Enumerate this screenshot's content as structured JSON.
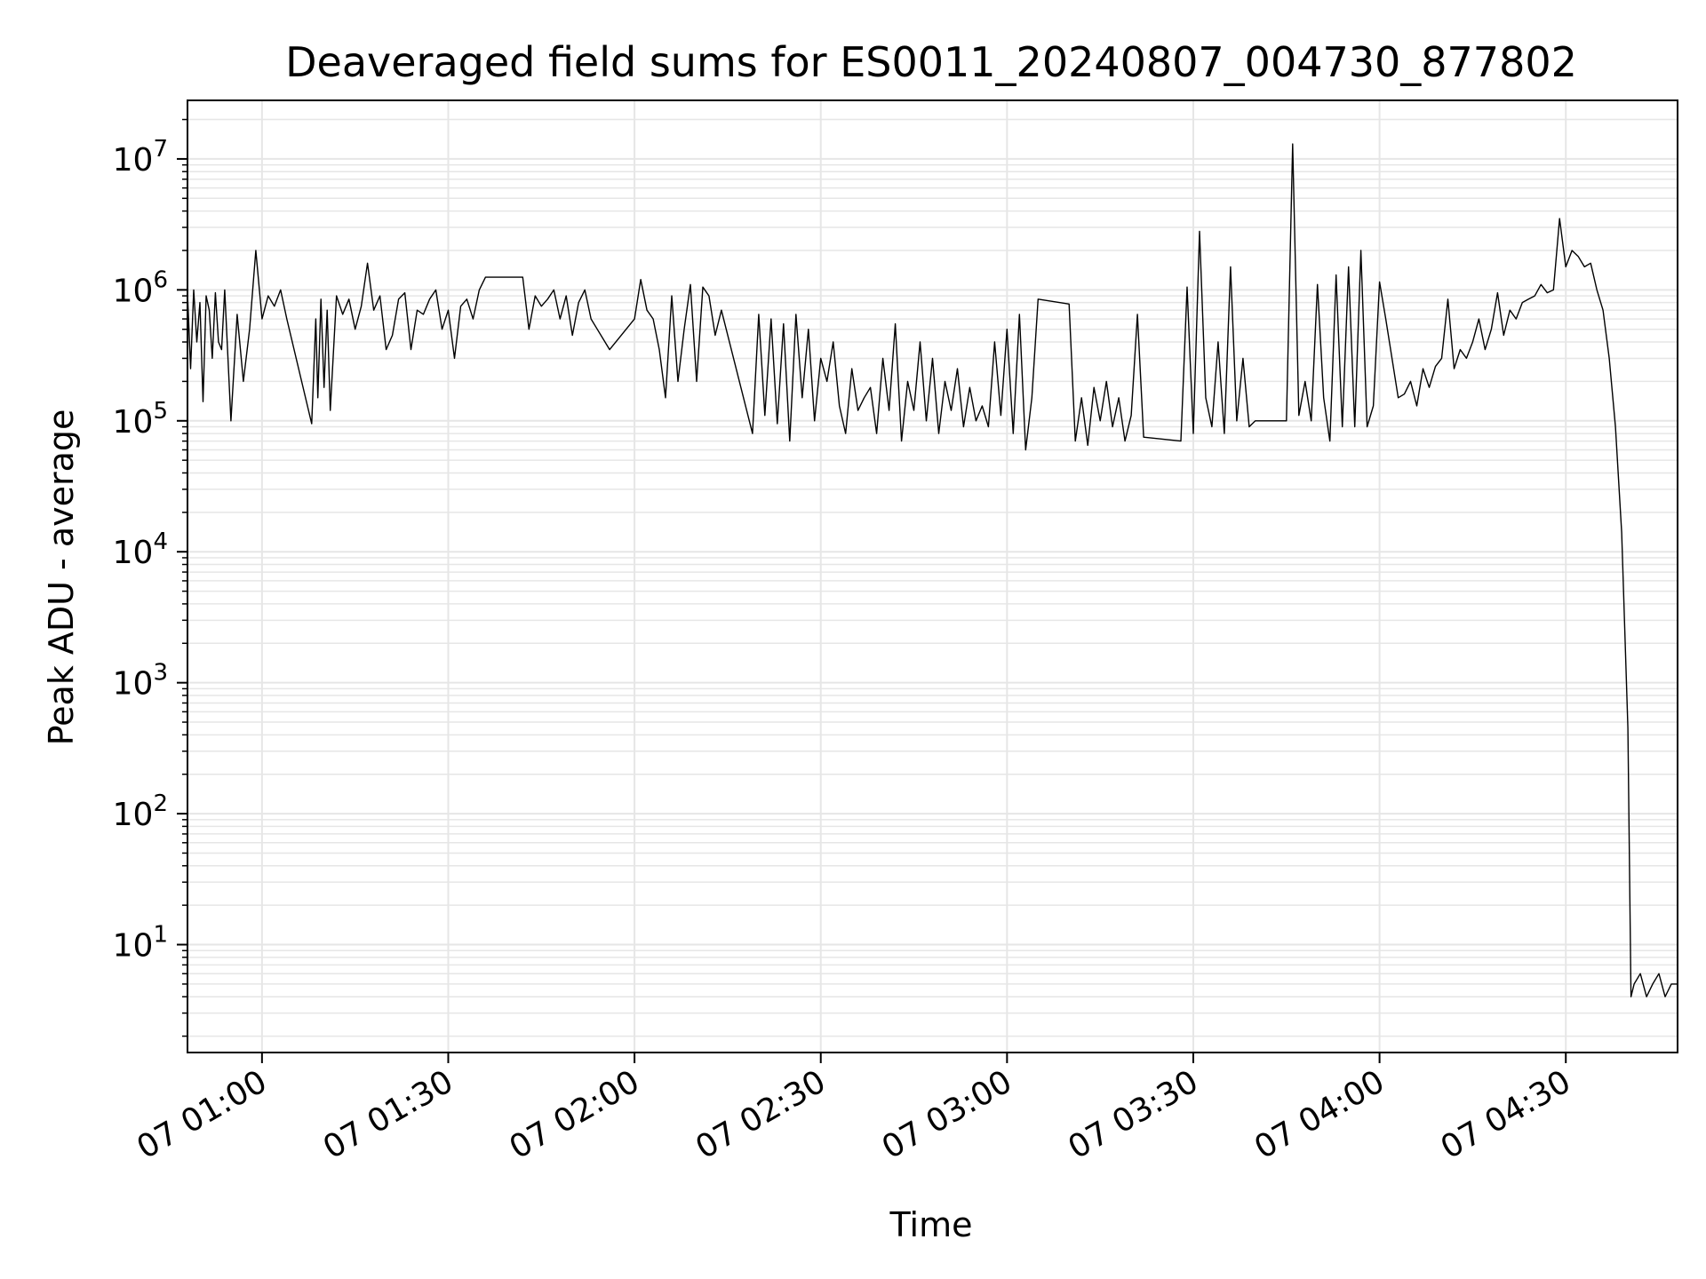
{
  "chart_data": {
    "type": "line",
    "title": "Deaveraged field sums for ES0011_20240807_004730_877802",
    "xlabel": "Time",
    "ylabel": "Peak ADU - average",
    "yscale": "log",
    "ylim": [
      1.5,
      28000000
    ],
    "xlim": [
      "2024-08-07 00:48",
      "2024-08-07 04:48"
    ],
    "x_tick_labels": [
      "07 01:00",
      "07 01:30",
      "07 02:00",
      "07 02:30",
      "07 03:00",
      "07 03:30",
      "07 04:00",
      "07 04:30"
    ],
    "x_ticks": [
      "2024-08-07 01:00",
      "2024-08-07 01:30",
      "2024-08-07 02:00",
      "2024-08-07 02:30",
      "2024-08-07 03:00",
      "2024-08-07 03:30",
      "2024-08-07 04:00",
      "2024-08-07 04:30"
    ],
    "y_ticks": [
      10,
      100,
      1000,
      10000,
      100000,
      1000000,
      10000000
    ],
    "y_tick_labels": [
      {
        "base": "10",
        "exp": "1"
      },
      {
        "base": "10",
        "exp": "2"
      },
      {
        "base": "10",
        "exp": "3"
      },
      {
        "base": "10",
        "exp": "4"
      },
      {
        "base": "10",
        "exp": "5"
      },
      {
        "base": "10",
        "exp": "6"
      },
      {
        "base": "10",
        "exp": "7"
      }
    ],
    "grid": true,
    "line_color": "#000000",
    "grid_color": "#e6e6e6",
    "series": [
      {
        "x": [
          "2024-08-07 00:48",
          "2024-08-07 00:48:30",
          "2024-08-07 00:49",
          "2024-08-07 00:49:30",
          "2024-08-07 00:50",
          "2024-08-07 00:50:30",
          "2024-08-07 00:51",
          "2024-08-07 00:51:30",
          "2024-08-07 00:52",
          "2024-08-07 00:52:30",
          "2024-08-07 00:53",
          "2024-08-07 00:53:30",
          "2024-08-07 00:54",
          "2024-08-07 00:55",
          "2024-08-07 00:56",
          "2024-08-07 00:57",
          "2024-08-07 00:58",
          "2024-08-07 00:59",
          "2024-08-07 01:00",
          "2024-08-07 01:01",
          "2024-08-07 01:02",
          "2024-08-07 01:03",
          "2024-08-07 01:04",
          "2024-08-07 01:08",
          "2024-08-07 01:08:40",
          "2024-08-07 01:09",
          "2024-08-07 01:09:30",
          "2024-08-07 01:10",
          "2024-08-07 01:10:30",
          "2024-08-07 01:11",
          "2024-08-07 01:12",
          "2024-08-07 01:13",
          "2024-08-07 01:14",
          "2024-08-07 01:15",
          "2024-08-07 01:16",
          "2024-08-07 01:17",
          "2024-08-07 01:18",
          "2024-08-07 01:19",
          "2024-08-07 01:20",
          "2024-08-07 01:21",
          "2024-08-07 01:22",
          "2024-08-07 01:23",
          "2024-08-07 01:24",
          "2024-08-07 01:25",
          "2024-08-07 01:26",
          "2024-08-07 01:27",
          "2024-08-07 01:28",
          "2024-08-07 01:29",
          "2024-08-07 01:30",
          "2024-08-07 01:31",
          "2024-08-07 01:32",
          "2024-08-07 01:33",
          "2024-08-07 01:34",
          "2024-08-07 01:35",
          "2024-08-07 01:36",
          "2024-08-07 01:37",
          "2024-08-07 01:42",
          "2024-08-07 01:43",
          "2024-08-07 01:44",
          "2024-08-07 01:45",
          "2024-08-07 01:46",
          "2024-08-07 01:47",
          "2024-08-07 01:48",
          "2024-08-07 01:49",
          "2024-08-07 01:50",
          "2024-08-07 01:51",
          "2024-08-07 01:52",
          "2024-08-07 01:53",
          "2024-08-07 01:54",
          "2024-08-07 01:56",
          "2024-08-07 02:00",
          "2024-08-07 02:01",
          "2024-08-07 02:02",
          "2024-08-07 02:03",
          "2024-08-07 02:04",
          "2024-08-07 02:05",
          "2024-08-07 02:06",
          "2024-08-07 02:07",
          "2024-08-07 02:08",
          "2024-08-07 02:09",
          "2024-08-07 02:10",
          "2024-08-07 02:11",
          "2024-08-07 02:12",
          "2024-08-07 02:13",
          "2024-08-07 02:14",
          "2024-08-07 02:19",
          "2024-08-07 02:20",
          "2024-08-07 02:21",
          "2024-08-07 02:22",
          "2024-08-07 02:23",
          "2024-08-07 02:24",
          "2024-08-07 02:25",
          "2024-08-07 02:26",
          "2024-08-07 02:27",
          "2024-08-07 02:28",
          "2024-08-07 02:29",
          "2024-08-07 02:30",
          "2024-08-07 02:31",
          "2024-08-07 02:32",
          "2024-08-07 02:33",
          "2024-08-07 02:34",
          "2024-08-07 02:35",
          "2024-08-07 02:36",
          "2024-08-07 02:37",
          "2024-08-07 02:38",
          "2024-08-07 02:39",
          "2024-08-07 02:40",
          "2024-08-07 02:41",
          "2024-08-07 02:42",
          "2024-08-07 02:43",
          "2024-08-07 02:44",
          "2024-08-07 02:45",
          "2024-08-07 02:46",
          "2024-08-07 02:47",
          "2024-08-07 02:48",
          "2024-08-07 02:49",
          "2024-08-07 02:50",
          "2024-08-07 02:51",
          "2024-08-07 02:52",
          "2024-08-07 02:53",
          "2024-08-07 02:54",
          "2024-08-07 02:55",
          "2024-08-07 02:56",
          "2024-08-07 02:57",
          "2024-08-07 02:58",
          "2024-08-07 02:59",
          "2024-08-07 03:00",
          "2024-08-07 03:01",
          "2024-08-07 03:02",
          "2024-08-07 03:03",
          "2024-08-07 03:04",
          "2024-08-07 03:05",
          "2024-08-07 03:10",
          "2024-08-07 03:11",
          "2024-08-07 03:12",
          "2024-08-07 03:13",
          "2024-08-07 03:14",
          "2024-08-07 03:15",
          "2024-08-07 03:16",
          "2024-08-07 03:17",
          "2024-08-07 03:18",
          "2024-08-07 03:19",
          "2024-08-07 03:20",
          "2024-08-07 03:21",
          "2024-08-07 03:22",
          "2024-08-07 03:28",
          "2024-08-07 03:29",
          "2024-08-07 03:30",
          "2024-08-07 03:31",
          "2024-08-07 03:32",
          "2024-08-07 03:33",
          "2024-08-07 03:34",
          "2024-08-07 03:35",
          "2024-08-07 03:36",
          "2024-08-07 03:37",
          "2024-08-07 03:38",
          "2024-08-07 03:39",
          "2024-08-07 03:40",
          "2024-08-07 03:45",
          "2024-08-07 03:46",
          "2024-08-07 03:47",
          "2024-08-07 03:48",
          "2024-08-07 03:49",
          "2024-08-07 03:50",
          "2024-08-07 03:51",
          "2024-08-07 03:52",
          "2024-08-07 03:53",
          "2024-08-07 03:54",
          "2024-08-07 03:55",
          "2024-08-07 03:56",
          "2024-08-07 03:57",
          "2024-08-07 03:58",
          "2024-08-07 03:59",
          "2024-08-07 04:00",
          "2024-08-07 04:01",
          "2024-08-07 04:02",
          "2024-08-07 04:03",
          "2024-08-07 04:04",
          "2024-08-07 04:05",
          "2024-08-07 04:06",
          "2024-08-07 04:07",
          "2024-08-07 04:08",
          "2024-08-07 04:09",
          "2024-08-07 04:10",
          "2024-08-07 04:11",
          "2024-08-07 04:12",
          "2024-08-07 04:13",
          "2024-08-07 04:14",
          "2024-08-07 04:15",
          "2024-08-07 04:16",
          "2024-08-07 04:17",
          "2024-08-07 04:18",
          "2024-08-07 04:19",
          "2024-08-07 04:20",
          "2024-08-07 04:21",
          "2024-08-07 04:22",
          "2024-08-07 04:23",
          "2024-08-07 04:24",
          "2024-08-07 04:25",
          "2024-08-07 04:26",
          "2024-08-07 04:27",
          "2024-08-07 04:28",
          "2024-08-07 04:29",
          "2024-08-07 04:30",
          "2024-08-07 04:31",
          "2024-08-07 04:32",
          "2024-08-07 04:33",
          "2024-08-07 04:34",
          "2024-08-07 04:35",
          "2024-08-07 04:36",
          "2024-08-07 04:37",
          "2024-08-07 04:38",
          "2024-08-07 04:39",
          "2024-08-07 04:40",
          "2024-08-07 04:40:30",
          "2024-08-07 04:41",
          "2024-08-07 04:42",
          "2024-08-07 04:43",
          "2024-08-07 04:44",
          "2024-08-07 04:45",
          "2024-08-07 04:46",
          "2024-08-07 04:47",
          "2024-08-07 04:48"
        ],
        "y": [
          950000,
          250000,
          1000000,
          400000,
          800000,
          140000,
          900000,
          700000,
          300000,
          950000,
          400000,
          350000,
          1000000,
          100000,
          650000,
          200000,
          500000,
          2000000,
          600000,
          900000,
          750000,
          1000000,
          600000,
          95000,
          600000,
          150000,
          850000,
          180000,
          700000,
          120000,
          900000,
          650000,
          850000,
          500000,
          750000,
          1600000,
          700000,
          900000,
          350000,
          450000,
          850000,
          950000,
          350000,
          700000,
          650000,
          850000,
          1000000,
          500000,
          700000,
          300000,
          750000,
          850000,
          600000,
          1000000,
          1250000,
          1250000,
          1250000,
          500000,
          900000,
          750000,
          850000,
          1000000,
          600000,
          900000,
          450000,
          800000,
          1000000,
          600000,
          500000,
          350000,
          600000,
          1200000,
          700000,
          600000,
          350000,
          150000,
          900000,
          200000,
          500000,
          1100000,
          200000,
          1050000,
          900000,
          450000,
          700000,
          80000,
          650000,
          110000,
          600000,
          95000,
          550000,
          70000,
          650000,
          150000,
          500000,
          100000,
          300000,
          200000,
          400000,
          130000,
          80000,
          250000,
          120000,
          150000,
          180000,
          80000,
          300000,
          120000,
          550000,
          70000,
          200000,
          120000,
          400000,
          100000,
          300000,
          80000,
          200000,
          120000,
          250000,
          90000,
          180000,
          100000,
          130000,
          90000,
          400000,
          110000,
          500000,
          80000,
          650000,
          60000,
          150000,
          850000,
          780000,
          70000,
          150000,
          65000,
          180000,
          100000,
          200000,
          90000,
          150000,
          70000,
          110000,
          650000,
          75000,
          70000,
          1050000,
          80000,
          2800000,
          150000,
          90000,
          400000,
          80000,
          1500000,
          100000,
          300000,
          90000,
          100000,
          100000,
          13000000,
          110000,
          200000,
          100000,
          1100000,
          150000,
          70000,
          1300000,
          90000,
          1500000,
          90000,
          2000000,
          90000,
          130000,
          1150000,
          600000,
          300000,
          150000,
          160000,
          200000,
          130000,
          250000,
          180000,
          260000,
          300000,
          850000,
          250000,
          350000,
          300000,
          400000,
          600000,
          350000,
          500000,
          950000,
          450000,
          700000,
          600000,
          800000,
          850000,
          900000,
          1100000,
          950000,
          1000000,
          3500000,
          1500000,
          2000000,
          1800000,
          1500000,
          1600000,
          1000000,
          700000,
          300000,
          90000,
          14000,
          450,
          4,
          5,
          6,
          4,
          5,
          6,
          4,
          5,
          5
        ]
      }
    ]
  }
}
